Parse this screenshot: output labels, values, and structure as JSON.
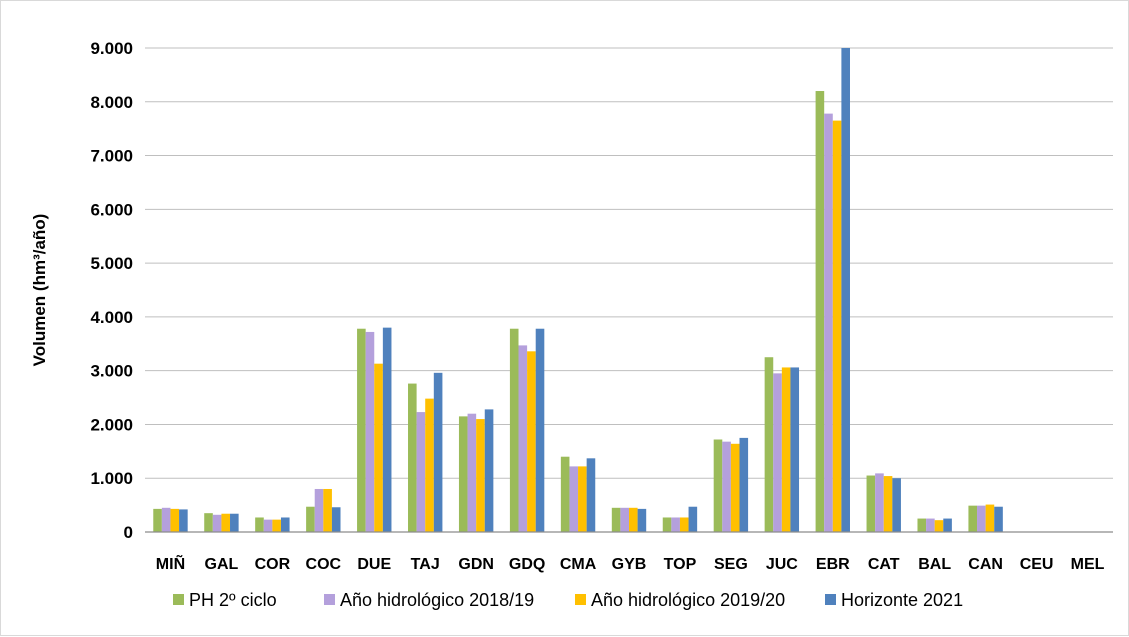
{
  "chart_data": {
    "type": "bar",
    "title": "",
    "xlabel": "",
    "ylabel": "Volumen (hm³/año)",
    "ylim": [
      0,
      9000
    ],
    "yticks": [
      0,
      1000,
      2000,
      3000,
      4000,
      5000,
      6000,
      7000,
      8000,
      9000
    ],
    "ytick_labels": [
      "0",
      "1.000",
      "2.000",
      "3.000",
      "4.000",
      "5.000",
      "6.000",
      "7.000",
      "8.000",
      "9.000"
    ],
    "grid": "horizontal",
    "legend_position": "bottom",
    "categories": [
      "MIÑ",
      "GAL",
      "COR",
      "COC",
      "DUE",
      "TAJ",
      "GDN",
      "GDQ",
      "CMA",
      "GYB",
      "TOP",
      "SEG",
      "JUC",
      "EBR",
      "CAT",
      "BAL",
      "CAN",
      "CEU",
      "MEL"
    ],
    "series": [
      {
        "name": "PH 2º ciclo",
        "color": "#9bbb59",
        "values": [
          430,
          350,
          270,
          470,
          3780,
          2760,
          2150,
          3780,
          1400,
          450,
          270,
          1720,
          3250,
          8200,
          1050,
          250,
          490,
          0,
          0
        ]
      },
      {
        "name": "Año hidrológico 2018/19",
        "color": "#b4a0dc",
        "values": [
          450,
          320,
          230,
          800,
          3720,
          2230,
          2200,
          3470,
          1220,
          450,
          270,
          1680,
          2950,
          7780,
          1090,
          250,
          490,
          0,
          0
        ]
      },
      {
        "name": "Año hidrológico 2019/20",
        "color": "#ffc000",
        "values": [
          430,
          340,
          230,
          800,
          3130,
          2480,
          2100,
          3360,
          1220,
          450,
          270,
          1640,
          3060,
          7650,
          1040,
          220,
          510,
          0,
          0
        ]
      },
      {
        "name": "Horizonte 2021",
        "color": "#4f81bd",
        "values": [
          420,
          340,
          270,
          460,
          3800,
          2960,
          2280,
          3780,
          1370,
          430,
          470,
          1750,
          3060,
          9000,
          1000,
          250,
          470,
          0,
          0
        ]
      }
    ]
  }
}
